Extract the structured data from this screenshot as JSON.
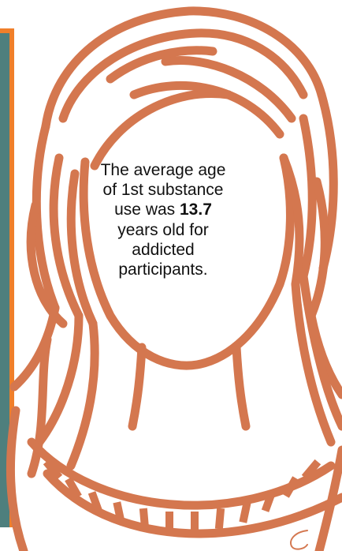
{
  "caption": {
    "line1": "The average age",
    "line2": "of 1st substance",
    "line3_prefix": "use was ",
    "line3_value": "13.7",
    "line4": "years old for",
    "line5": "addicted",
    "line6": "participants."
  },
  "colors": {
    "outline": "#d4774f",
    "side_panel": "#4e7f7d",
    "side_border": "#f07f2a"
  },
  "icons": {
    "figure": "woman-portrait-line-art-icon"
  }
}
